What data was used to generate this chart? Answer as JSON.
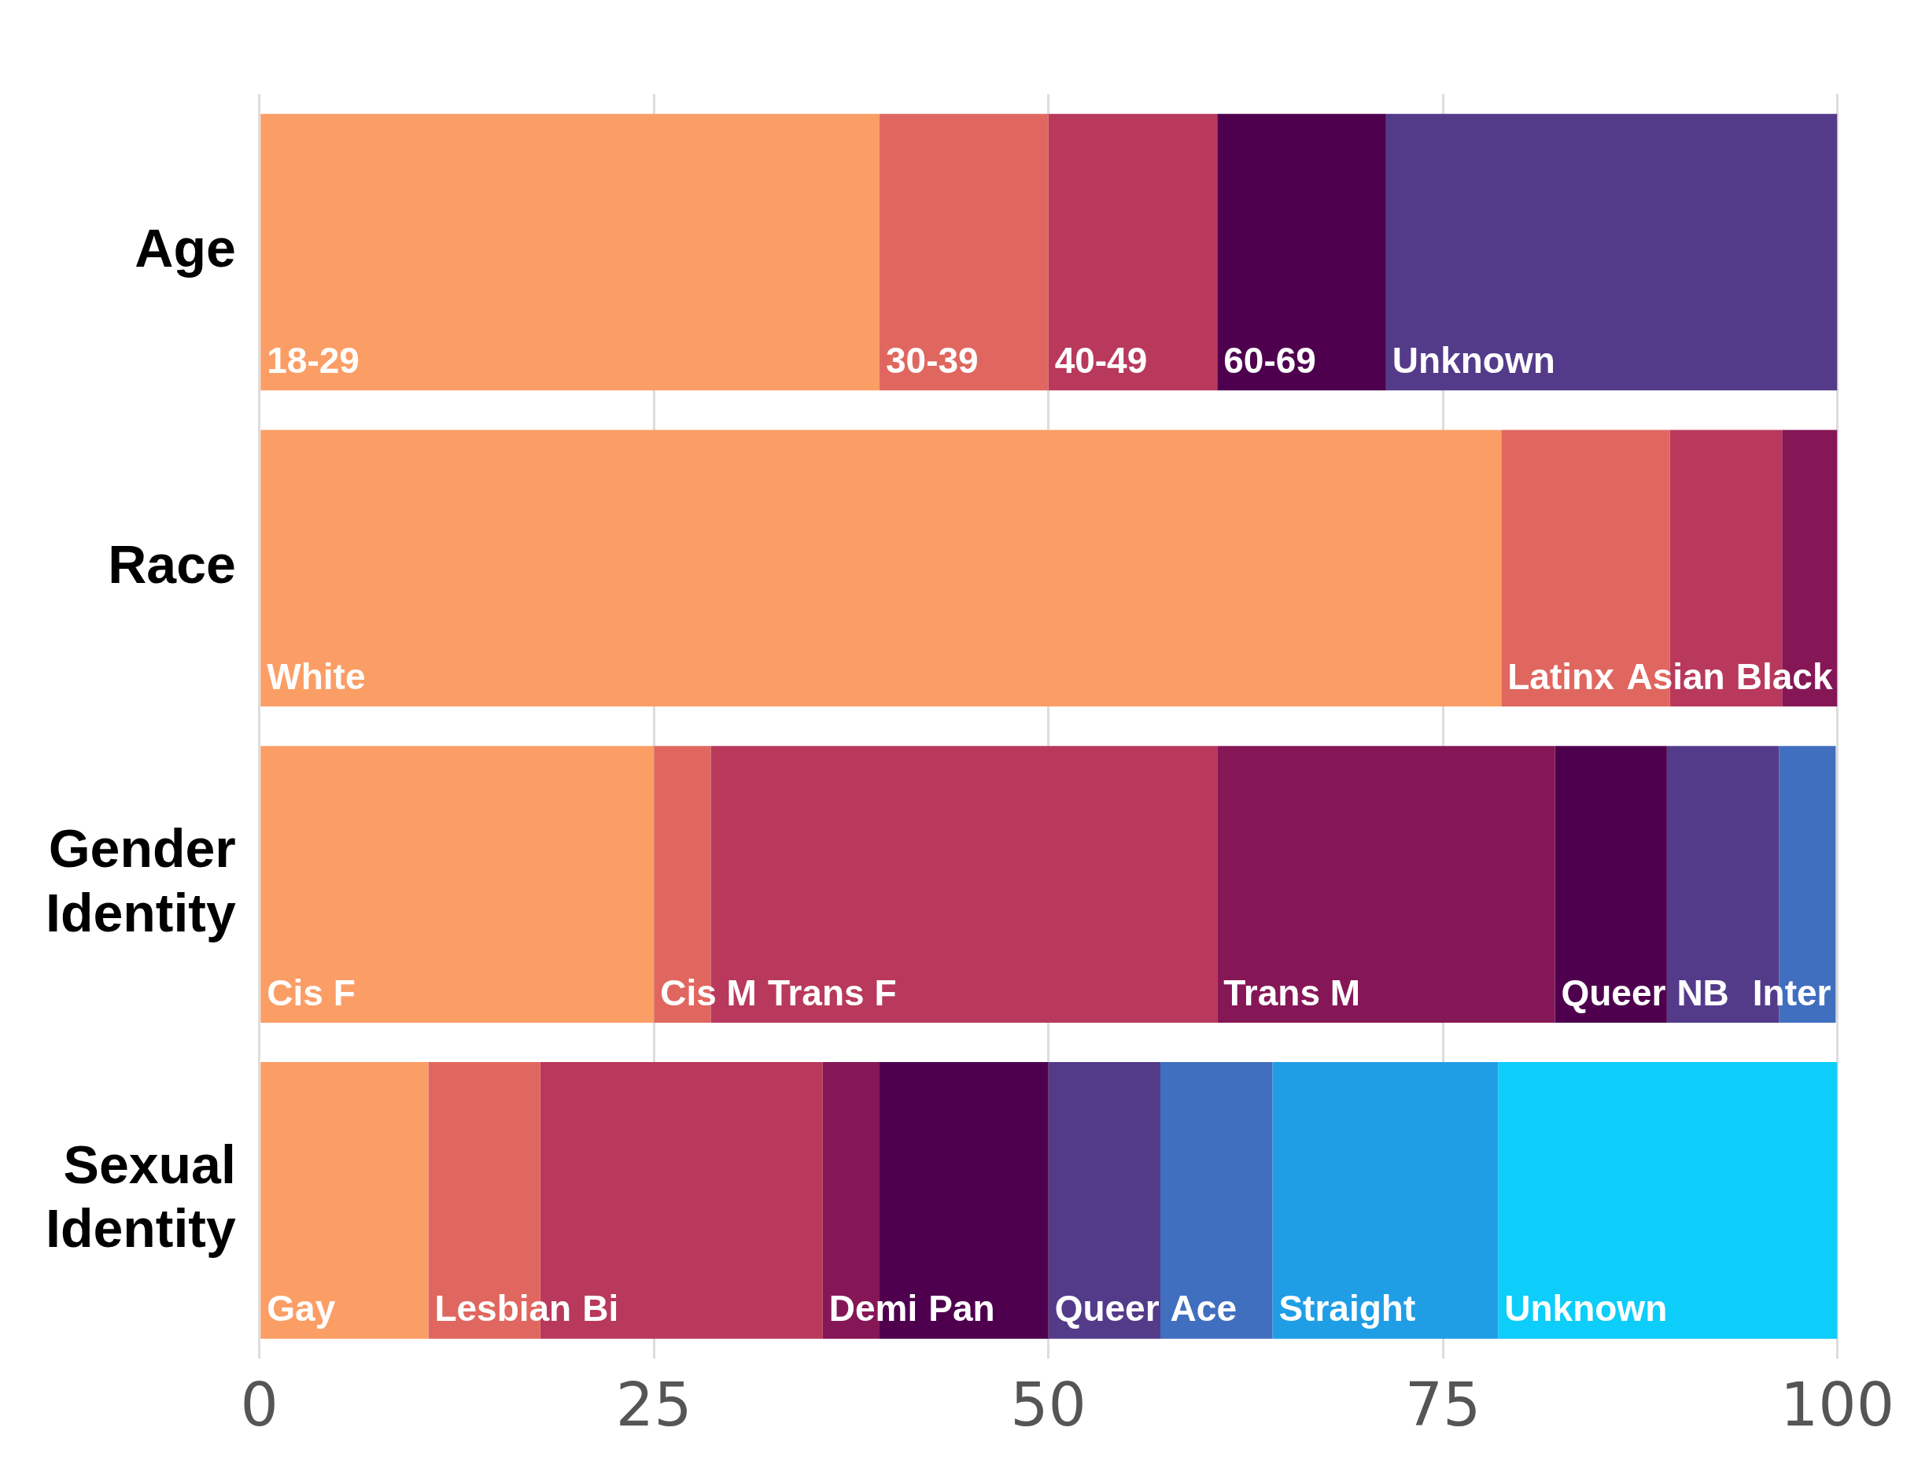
{
  "chart_data": {
    "type": "bar",
    "orientation": "horizontal",
    "stacked": true,
    "categories": [
      "Age",
      "Race",
      "Gender Identity",
      "Sexual Identity"
    ],
    "xlim": [
      0,
      100
    ],
    "xticks": [
      0,
      25,
      50,
      75,
      100
    ],
    "grid": "x",
    "legend": false,
    "series": [
      {
        "values": [
          39.3,
          78.7,
          25.0,
          10.7
        ],
        "colors": [
          "#fb9e66",
          "#fb9e66",
          "#fb9e66",
          "#fb9e66"
        ],
        "value_labels": [
          "18-29",
          "White",
          "Cis F",
          "Gay"
        ]
      },
      {
        "values": [
          10.7,
          10.7,
          3.6,
          7.1
        ],
        "colors": [
          "#e0675f",
          "#e0675f",
          "#e0675f",
          "#e0675f"
        ],
        "value_labels": [
          "30-39",
          "Latinx",
          "Cis M",
          "Lesbian"
        ]
      },
      {
        "values": [
          10.7,
          7.1,
          32.1,
          17.9
        ],
        "colors": [
          "#b8395b",
          "#b8395b",
          "#b8395b",
          "#b8395b"
        ],
        "value_labels": [
          "40-49",
          "Asian",
          "Trans F",
          "Bi"
        ]
      },
      {
        "values": [
          10.7,
          3.5,
          21.4,
          3.6
        ],
        "colors": [
          "#4e004f",
          "#861757",
          "#861757",
          "#861757"
        ],
        "value_labels": [
          "60-69",
          "Black",
          "Trans M",
          "Demi"
        ]
      },
      {
        "values": [
          28.6,
          null,
          7.1,
          10.7
        ],
        "colors": [
          "#543b8a",
          "#543b8a",
          "#4e004f",
          "#4e004f"
        ],
        "value_labels": [
          "Unknown",
          null,
          "Queer",
          "Pan"
        ]
      },
      {
        "values": [
          null,
          null,
          7.1,
          7.1
        ],
        "colors": [
          "#543b8a",
          "#543b8a",
          "#543b8a",
          "#543b8a"
        ],
        "value_labels": [
          null,
          null,
          "NB",
          "Queer"
        ]
      },
      {
        "values": [
          null,
          null,
          3.6,
          7.1
        ],
        "colors": [
          "#416fc0",
          "#416fc0",
          "#416fc0",
          "#416fc0"
        ],
        "value_labels": [
          null,
          null,
          "Inter",
          "Ace"
        ]
      },
      {
        "values": [
          null,
          null,
          null,
          14.3
        ],
        "colors": [
          "#1f9ee6",
          "#1f9ee6",
          "#1f9ee6",
          "#1f9ee6"
        ],
        "value_labels": [
          null,
          null,
          null,
          "Straight"
        ]
      },
      {
        "values": [
          null,
          null,
          null,
          21.5
        ],
        "colors": [
          "#0dcdfa",
          "#0dcdfa",
          "#0dcdfa",
          "#0dcdfa"
        ],
        "value_labels": [
          null,
          null,
          null,
          "Unknown"
        ]
      }
    ]
  }
}
